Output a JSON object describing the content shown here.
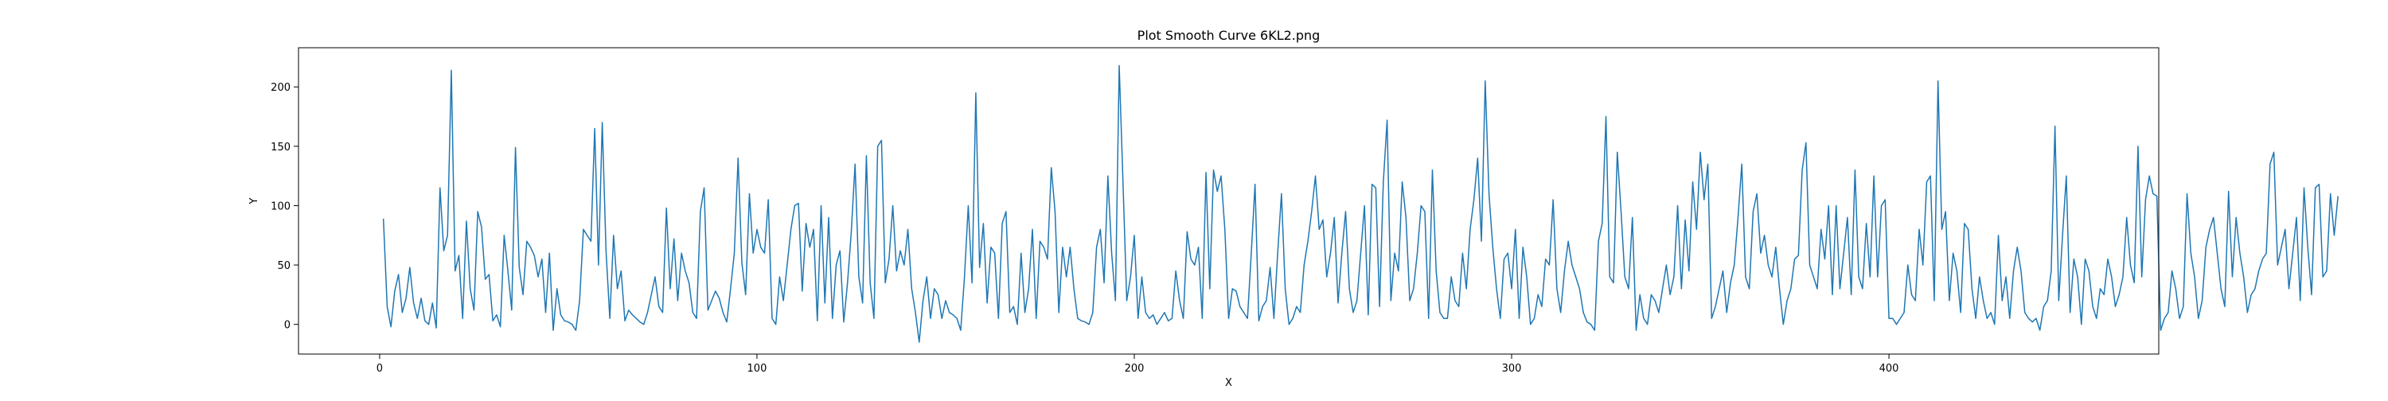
{
  "chart_data": {
    "type": "line",
    "title": "Plot Smooth Curve 6KL2.png",
    "xlabel": "X",
    "ylabel": "Y",
    "xlim": [
      -21.5,
      471.5
    ],
    "ylim": [
      -25,
      233
    ],
    "xticks": [
      0,
      100,
      200,
      300,
      400
    ],
    "yticks": [
      0,
      50,
      100,
      150,
      200
    ],
    "grid": false,
    "legend": "none",
    "line_color": "#1f77b4",
    "series": [
      {
        "values": [
          89,
          15,
          -2,
          28,
          42,
          10,
          22,
          48,
          18,
          5,
          22,
          3,
          0,
          18,
          -3,
          115,
          62,
          75,
          214,
          45,
          58,
          5,
          87,
          30,
          12,
          95,
          82,
          38,
          42,
          3,
          8,
          -2,
          75,
          45,
          12,
          149,
          48,
          25,
          70,
          65,
          58,
          40,
          55,
          10,
          60,
          -5,
          30,
          8,
          3,
          2,
          0,
          -5,
          20,
          80,
          75,
          70,
          165,
          50,
          170,
          62,
          5,
          75,
          30,
          45,
          3,
          12,
          8,
          5,
          2,
          0,
          10,
          25,
          40,
          15,
          10,
          98,
          30,
          72,
          20,
          60,
          45,
          35,
          10,
          5,
          95,
          115,
          12,
          20,
          28,
          22,
          10,
          2,
          30,
          60,
          140,
          52,
          25,
          110,
          60,
          80,
          65,
          60,
          105,
          5,
          0,
          40,
          20,
          50,
          80,
          100,
          102,
          28,
          85,
          65,
          80,
          3,
          100,
          18,
          90,
          5,
          50,
          62,
          2,
          35,
          78,
          135,
          40,
          18,
          142,
          35,
          5,
          150,
          155,
          35,
          55,
          100,
          45,
          62,
          50,
          80,
          30,
          10,
          -15,
          20,
          40,
          5,
          30,
          25,
          5,
          20,
          10,
          8,
          5,
          -5,
          40,
          100,
          35,
          195,
          48,
          85,
          18,
          65,
          60,
          5,
          85,
          95,
          10,
          15,
          0,
          60,
          10,
          30,
          80,
          5,
          70,
          65,
          55,
          132,
          95,
          10,
          65,
          40,
          65,
          30,
          5,
          3,
          2,
          0,
          10,
          65,
          80,
          35,
          125,
          60,
          20,
          218,
          120,
          20,
          40,
          75,
          5,
          40,
          10,
          5,
          8,
          0,
          5,
          10,
          3,
          5,
          45,
          20,
          5,
          78,
          55,
          50,
          65,
          5,
          128,
          30,
          130,
          112,
          125,
          80,
          5,
          30,
          28,
          15,
          10,
          5,
          60,
          118,
          3,
          15,
          20,
          48,
          5,
          60,
          110,
          30,
          0,
          5,
          15,
          10,
          50,
          70,
          95,
          125,
          80,
          88,
          40,
          60,
          90,
          18,
          60,
          95,
          30,
          10,
          20,
          60,
          100,
          8,
          118,
          115,
          15,
          120,
          172,
          20,
          60,
          45,
          120,
          90,
          20,
          30,
          60,
          100,
          95,
          5,
          130,
          45,
          10,
          5,
          5,
          40,
          20,
          15,
          60,
          30,
          80,
          105,
          140,
          70,
          205,
          110,
          65,
          30,
          5,
          55,
          60,
          30,
          80,
          5,
          65,
          40,
          0,
          5,
          25,
          15,
          55,
          50,
          105,
          30,
          10,
          45,
          70,
          50,
          40,
          30,
          10,
          2,
          0,
          -5,
          70,
          85,
          175,
          40,
          35,
          145,
          95,
          40,
          30,
          90,
          -5,
          25,
          5,
          0,
          25,
          20,
          10,
          30,
          50,
          25,
          40,
          100,
          30,
          88,
          45,
          120,
          80,
          145,
          105,
          135,
          5,
          15,
          30,
          45,
          10,
          35,
          50,
          90,
          135,
          40,
          30,
          95,
          110,
          60,
          75,
          50,
          40,
          65,
          30,
          0,
          20,
          30,
          55,
          58,
          130,
          153,
          50,
          40,
          30,
          80,
          55,
          100,
          25,
          100,
          30,
          60,
          90,
          25,
          130,
          40,
          30,
          85,
          40,
          125,
          40,
          100,
          105,
          5,
          5,
          0,
          5,
          10,
          50,
          25,
          20,
          80,
          50,
          120,
          125,
          20,
          205,
          80,
          95,
          20,
          60,
          45,
          10,
          85,
          80,
          30,
          5,
          40,
          20,
          5,
          10,
          0,
          75,
          20,
          40,
          5,
          45,
          65,
          45,
          10,
          5,
          2,
          5,
          -5,
          15,
          20,
          45,
          167,
          20,
          75,
          125,
          10,
          55,
          40,
          0,
          55,
          45,
          15,
          5,
          30,
          25,
          55,
          40,
          15,
          25,
          40,
          90,
          50,
          35,
          150,
          40,
          105,
          125,
          110,
          108,
          -5,
          5,
          10,
          45,
          30,
          5,
          15,
          110,
          60,
          40,
          5,
          20,
          65,
          80,
          90,
          60,
          30,
          15,
          112,
          40,
          90,
          60,
          40,
          10,
          25,
          30,
          45,
          55,
          60,
          135,
          145,
          50,
          65,
          80,
          30,
          60,
          90,
          20,
          115,
          65,
          25,
          115,
          118,
          40,
          45,
          110,
          75,
          108
        ]
      }
    ]
  }
}
